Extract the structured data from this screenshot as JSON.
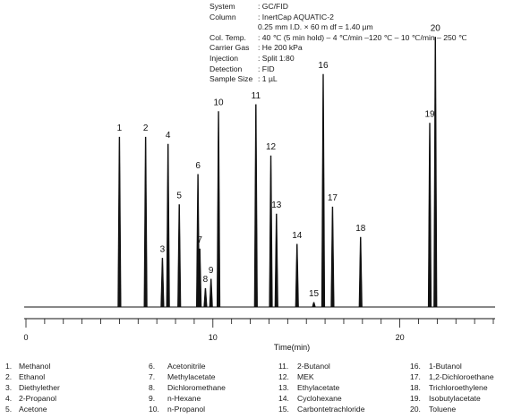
{
  "conditions": [
    {
      "label": "System",
      "value": ": GC/FID"
    },
    {
      "label": "Column",
      "value": ": InertCap AQUATIC-2"
    },
    {
      "label": "",
      "value": "0.25 mm I.D. × 60 m    df = 1.40 µm"
    },
    {
      "label": "Col. Temp.",
      "value": ": 40 ℃ (5 min hold) – 4 ℃/min –120 ℃ – 10 ℃/min – 250 ℃"
    },
    {
      "label": "Carrier Gas",
      "value": ": He 200 kPa"
    },
    {
      "label": "Injection",
      "value": ": Split 1:80"
    },
    {
      "label": "Detection",
      "value": ": FID"
    },
    {
      "label": "Sample Size",
      "value": ": 1 µL"
    }
  ],
  "chart_data": {
    "type": "line",
    "xlabel": "Time(min)",
    "xlim": [
      0,
      25
    ],
    "x_ticks": [
      0,
      10,
      20
    ],
    "peaks": [
      {
        "label": "1",
        "rt": 5.0,
        "height": 0.73
      },
      {
        "label": "2",
        "rt": 6.4,
        "height": 0.73
      },
      {
        "label": "3",
        "rt": 7.3,
        "height": 0.21
      },
      {
        "label": "4",
        "rt": 7.6,
        "height": 0.7
      },
      {
        "label": "5",
        "rt": 8.2,
        "height": 0.44
      },
      {
        "label": "6",
        "rt": 9.2,
        "height": 0.57
      },
      {
        "label": "7",
        "rt": 9.3,
        "height": 0.25
      },
      {
        "label": "8",
        "rt": 9.6,
        "height": 0.08
      },
      {
        "label": "9",
        "rt": 9.9,
        "height": 0.12
      },
      {
        "label": "10",
        "rt": 10.3,
        "height": 0.84
      },
      {
        "label": "11",
        "rt": 12.3,
        "height": 0.87
      },
      {
        "label": "12",
        "rt": 13.1,
        "height": 0.65
      },
      {
        "label": "13",
        "rt": 13.4,
        "height": 0.4
      },
      {
        "label": "14",
        "rt": 14.5,
        "height": 0.27
      },
      {
        "label": "15",
        "rt": 15.4,
        "height": 0.02
      },
      {
        "label": "16",
        "rt": 15.9,
        "height": 1.0
      },
      {
        "label": "17",
        "rt": 16.4,
        "height": 0.43
      },
      {
        "label": "18",
        "rt": 17.9,
        "height": 0.3
      },
      {
        "label": "19",
        "rt": 21.6,
        "height": 0.79
      },
      {
        "label": "20",
        "rt": 21.9,
        "height": 1.16
      }
    ]
  },
  "legend_columns": [
    [
      {
        "num": "1.",
        "name": "Methanol"
      },
      {
        "num": "2.",
        "name": "Ethanol"
      },
      {
        "num": "3.",
        "name": "Diethylether"
      },
      {
        "num": "4.",
        "name": "2-Propanol"
      },
      {
        "num": "5.",
        "name": "Acetone"
      }
    ],
    [
      {
        "num": "6.",
        "name": "Acetonitrile"
      },
      {
        "num": "7.",
        "name": "Methylacetate"
      },
      {
        "num": "8.",
        "name": "Dichloromethane"
      },
      {
        "num": "9.",
        "name": "n-Hexane"
      },
      {
        "num": "10.",
        "name": "n-Propanol"
      }
    ],
    [
      {
        "num": "11.",
        "name": "2-Butanol"
      },
      {
        "num": "12.",
        "name": "MEK"
      },
      {
        "num": "13.",
        "name": "Ethylacetate"
      },
      {
        "num": "14.",
        "name": "Cyclohexane"
      },
      {
        "num": "15.",
        "name": "Carbontetrachloride"
      }
    ],
    [
      {
        "num": "16.",
        "name": "1-Butanol"
      },
      {
        "num": "17.",
        "name": "1,2-Dichloroethane"
      },
      {
        "num": "18.",
        "name": "Trichloroethylene"
      },
      {
        "num": "19.",
        "name": "Isobutylacetate"
      },
      {
        "num": "20.",
        "name": "Toluene"
      }
    ]
  ]
}
